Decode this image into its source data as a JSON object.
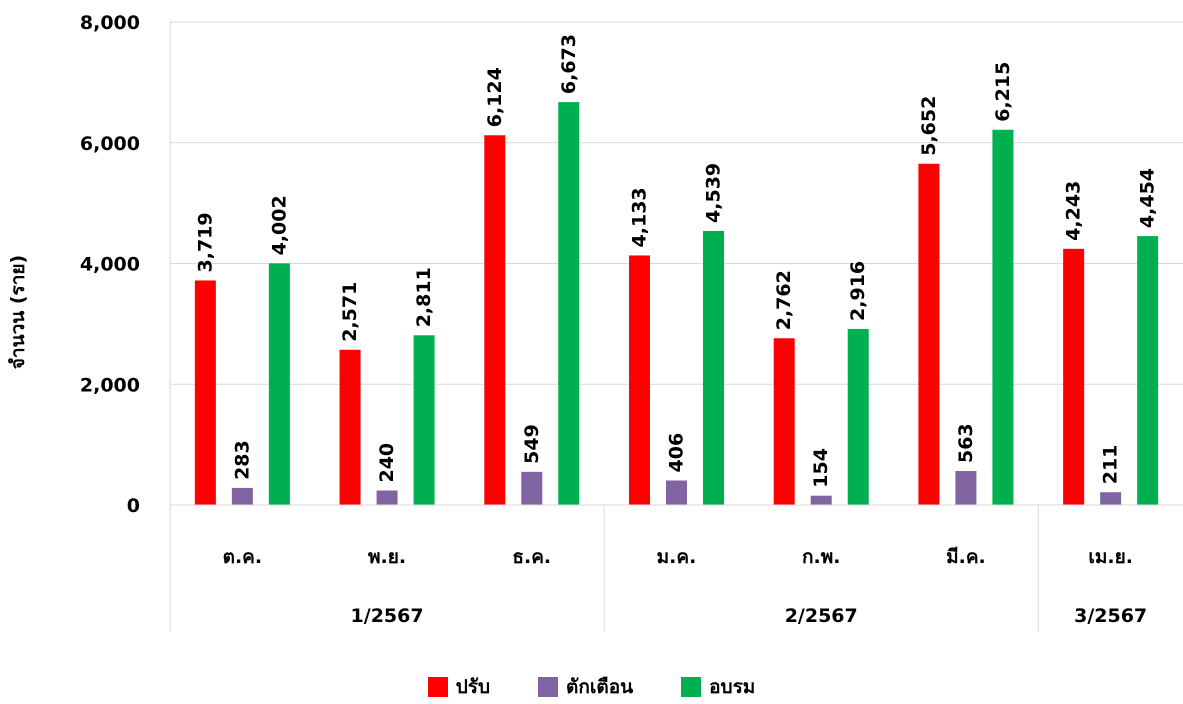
{
  "chart_data": {
    "type": "bar",
    "ylabel": "จำนวน (ราย)",
    "xlabel": "",
    "ylim": [
      0,
      8000
    ],
    "yticks": [
      "0",
      "2,000",
      "4,000",
      "6,000",
      "8,000"
    ],
    "grid": true,
    "legend_position": "bottom",
    "categories": [
      "ต.ค.",
      "พ.ย.",
      "ธ.ค.",
      "ม.ค.",
      "ก.พ.",
      "มี.ค.",
      "เม.ย."
    ],
    "groups": [
      {
        "label": "1/2567",
        "categories": [
          "ต.ค.",
          "พ.ย.",
          "ธ.ค."
        ]
      },
      {
        "label": "2/2567",
        "categories": [
          "ม.ค.",
          "ก.พ.",
          "มี.ค."
        ]
      },
      {
        "label": "3/2567",
        "categories": [
          "เม.ย."
        ]
      }
    ],
    "series": [
      {
        "name": "ปรับ",
        "color": "#FF0000",
        "values": [
          3719,
          2571,
          6124,
          4133,
          2762,
          5652,
          4243
        ],
        "labels": [
          "3,719",
          "2,571",
          "6,124",
          "4,133",
          "2,762",
          "5,652",
          "4,243"
        ]
      },
      {
        "name": "ตักเตือน",
        "color": "#8064A2",
        "values": [
          283,
          240,
          549,
          406,
          154,
          563,
          211
        ],
        "labels": [
          "283",
          "240",
          "549",
          "406",
          "154",
          "563",
          "211"
        ]
      },
      {
        "name": "อบรม",
        "color": "#00B050",
        "values": [
          4002,
          2811,
          6673,
          4539,
          2916,
          6215,
          4454
        ],
        "labels": [
          "4,002",
          "2,811",
          "6,673",
          "4,539",
          "2,916",
          "6,215",
          "4,454"
        ]
      }
    ]
  }
}
